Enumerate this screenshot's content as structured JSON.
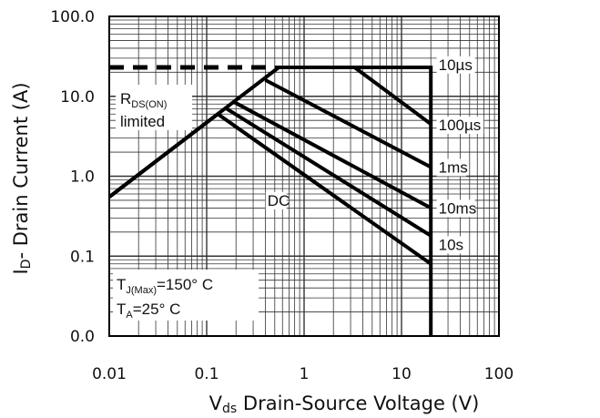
{
  "chart_data": {
    "type": "line",
    "x_scale": "log",
    "y_scale": "log",
    "xlim": [
      0.01,
      100
    ],
    "ylim": [
      0.01,
      100
    ],
    "x_ticks": [
      {
        "value": 0.01,
        "label": "0.01"
      },
      {
        "value": 0.1,
        "label": "0.1"
      },
      {
        "value": 1,
        "label": "1"
      },
      {
        "value": 10,
        "label": "10"
      },
      {
        "value": 100,
        "label": "100"
      }
    ],
    "y_ticks": [
      {
        "value": 0.01,
        "label": "0.0"
      },
      {
        "value": 0.1,
        "label": "0.1"
      },
      {
        "value": 1,
        "label": "1.0"
      },
      {
        "value": 10,
        "label": "10.0"
      },
      {
        "value": 100,
        "label": "100.0"
      }
    ],
    "xlabel": {
      "main": "V",
      "sub": "ds",
      "rest": " Drain-Source Voltage (V)"
    },
    "ylabel": {
      "main": "I",
      "sub": "D",
      "rest": "- Drain Current (A)"
    },
    "grid": true,
    "series": [
      {
        "label": "10µs",
        "label_at": [
          22,
          25
        ],
        "points": [
          [
            0.55,
            23
          ],
          [
            20,
            23
          ],
          [
            20,
            0.01
          ]
        ]
      },
      {
        "label": "100µs",
        "label_at": [
          22,
          4.4
        ],
        "points": [
          [
            0.5,
            23
          ],
          [
            3.3,
            23
          ],
          [
            20,
            4.5
          ]
        ]
      },
      {
        "label": "1ms",
        "label_at": [
          22,
          1.3
        ],
        "points": [
          [
            0.4,
            16
          ],
          [
            20,
            1.3
          ]
        ]
      },
      {
        "label": "10ms",
        "label_at": [
          22,
          0.4
        ],
        "points": [
          [
            0.19,
            8.5
          ],
          [
            20,
            0.4
          ]
        ]
      },
      {
        "label": "10s",
        "label_at": [
          22,
          0.14
        ],
        "points": [
          [
            0.16,
            7
          ],
          [
            20,
            0.18
          ]
        ]
      },
      {
        "label": "DC",
        "label_at": [
          0.42,
          0.5
        ],
        "points": [
          [
            0.01,
            0.55
          ],
          [
            0.13,
            6
          ],
          [
            20,
            0.08
          ]
        ]
      }
    ],
    "rds_limit_line": {
      "points": [
        [
          0.01,
          0.55
        ],
        [
          0.55,
          23
        ]
      ]
    },
    "current_limit_dashed": {
      "y": 23,
      "x_from": 0.01,
      "x_to": 0.5
    },
    "annotations": {
      "rds_on": {
        "main": "R",
        "sub": "DS(ON)",
        "line2": "limited"
      },
      "tj": {
        "main": "T",
        "sub": "J(Max)",
        "rest": "=150° C"
      },
      "ta": {
        "main": "T",
        "sub": "A",
        "rest": "=25° C"
      }
    }
  }
}
